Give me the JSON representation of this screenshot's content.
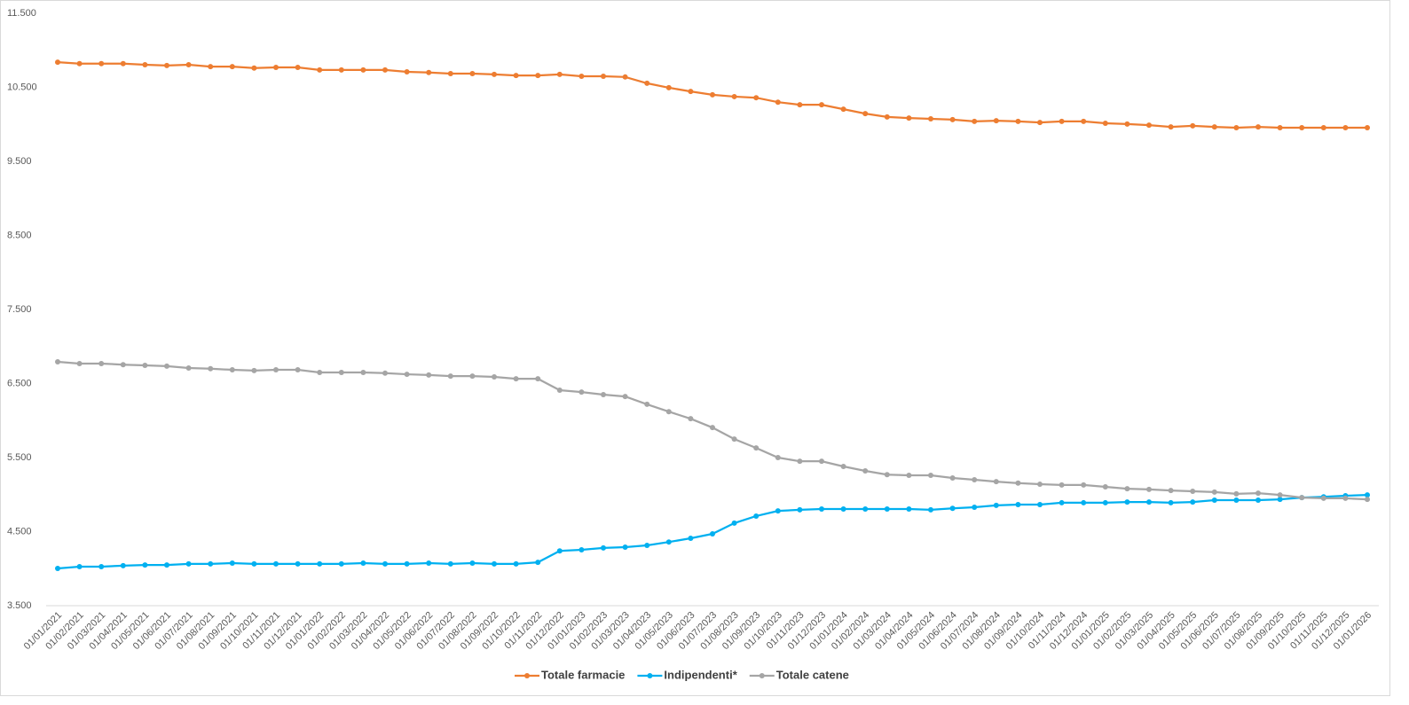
{
  "chart_data": {
    "type": "line",
    "categories": [
      "01/01/2021",
      "01/02/2021",
      "01/03/2021",
      "01/04/2021",
      "01/05/2021",
      "01/06/2021",
      "01/07/2021",
      "01/08/2021",
      "01/09/2021",
      "01/10/2021",
      "01/11/2021",
      "01/12/2021",
      "01/01/2022",
      "01/02/2022",
      "01/03/2022",
      "01/04/2022",
      "01/05/2022",
      "01/06/2022",
      "01/07/2022",
      "01/08/2022",
      "01/09/2022",
      "01/10/2022",
      "01/11/2022",
      "01/12/2022",
      "01/01/2023",
      "01/02/2023",
      "01/03/2023",
      "01/04/2023",
      "01/05/2023",
      "01/06/2023",
      "01/07/2023",
      "01/08/2023",
      "01/09/2023",
      "01/10/2023",
      "01/11/2023",
      "01/12/2023",
      "01/01/2024",
      "01/02/2024",
      "01/03/2024",
      "01/04/2024",
      "01/05/2024",
      "01/06/2024",
      "01/07/2024",
      "01/08/2024",
      "01/09/2024",
      "01/10/2024",
      "01/11/2024",
      "01/12/2024",
      "01/01/2025",
      "01/02/2025",
      "01/03/2025",
      "01/04/2025",
      "01/05/2025",
      "01/06/2025",
      "01/07/2025",
      "01/08/2025",
      "01/09/2025",
      "01/10/2025",
      "01/11/2025",
      "01/12/2025",
      "01/01/2026"
    ],
    "series": [
      {
        "name": "Totale farmacie",
        "color": "#ed7d31",
        "values": [
          10840,
          10820,
          10820,
          10820,
          10805,
          10795,
          10805,
          10780,
          10780,
          10760,
          10770,
          10770,
          10735,
          10735,
          10735,
          10735,
          10710,
          10700,
          10685,
          10685,
          10675,
          10660,
          10660,
          10675,
          10650,
          10650,
          10640,
          10555,
          10495,
          10445,
          10400,
          10375,
          10360,
          10300,
          10265,
          10265,
          10205,
          10145,
          10100,
          10085,
          10075,
          10065,
          10040,
          10050,
          10040,
          10025,
          10040,
          10040,
          10015,
          10005,
          9990,
          9965,
          9980,
          9965,
          9955,
          9965,
          9955,
          9955,
          9955,
          9955,
          9955
        ]
      },
      {
        "name": "Indipendenti*",
        "color": "#00b0f0",
        "values": [
          4003,
          4027,
          4027,
          4040,
          4050,
          4050,
          4065,
          4065,
          4075,
          4065,
          4065,
          4065,
          4065,
          4065,
          4075,
          4065,
          4065,
          4075,
          4065,
          4075,
          4065,
          4065,
          4085,
          4240,
          4255,
          4280,
          4290,
          4315,
          4360,
          4410,
          4470,
          4615,
          4710,
          4780,
          4795,
          4805,
          4805,
          4805,
          4805,
          4805,
          4795,
          4815,
          4830,
          4855,
          4865,
          4865,
          4890,
          4890,
          4890,
          4900,
          4900,
          4890,
          4900,
          4925,
          4925,
          4925,
          4935,
          4960,
          4970,
          4985,
          4995
        ]
      },
      {
        "name": "Totale catene",
        "color": "#a5a5a5",
        "values": [
          6793,
          6770,
          6770,
          6755,
          6745,
          6735,
          6710,
          6700,
          6685,
          6675,
          6685,
          6685,
          6650,
          6650,
          6650,
          6640,
          6625,
          6615,
          6600,
          6600,
          6590,
          6565,
          6565,
          6410,
          6385,
          6350,
          6325,
          6220,
          6120,
          6025,
          5905,
          5750,
          5630,
          5500,
          5450,
          5450,
          5380,
          5320,
          5270,
          5260,
          5260,
          5225,
          5200,
          5175,
          5155,
          5140,
          5130,
          5130,
          5105,
          5080,
          5070,
          5055,
          5045,
          5035,
          5010,
          5020,
          4995,
          4960,
          4950,
          4950,
          4935
        ]
      }
    ],
    "ylim": [
      3500,
      11500
    ],
    "yticks": [
      {
        "value": 3500,
        "label": "3.500"
      },
      {
        "value": 4500,
        "label": "4.500"
      },
      {
        "value": 5500,
        "label": "5.500"
      },
      {
        "value": 6500,
        "label": "6.500"
      },
      {
        "value": 7500,
        "label": "7.500"
      },
      {
        "value": 8500,
        "label": "8.500"
      },
      {
        "value": 9500,
        "label": "9.500"
      },
      {
        "value": 10500,
        "label": "10.500"
      },
      {
        "value": 11500,
        "label": "11.500"
      }
    ],
    "grid": false,
    "legend": "bottom"
  }
}
